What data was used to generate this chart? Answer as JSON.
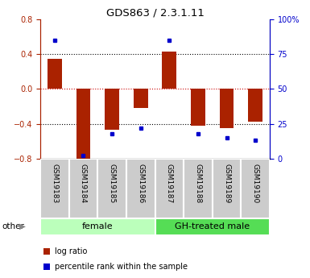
{
  "title": "GDS863 / 2.3.1.11",
  "samples": [
    "GSM19183",
    "GSM19184",
    "GSM19185",
    "GSM19186",
    "GSM19187",
    "GSM19188",
    "GSM19189",
    "GSM19190"
  ],
  "log_ratio": [
    0.35,
    -0.8,
    -0.47,
    -0.22,
    0.43,
    -0.42,
    -0.45,
    -0.38
  ],
  "percentile_rank": [
    85,
    2,
    18,
    22,
    85,
    18,
    15,
    13
  ],
  "groups": [
    {
      "label": "female",
      "start": 0,
      "end": 4,
      "color": "#bbffbb"
    },
    {
      "label": "GH-treated male",
      "start": 4,
      "end": 8,
      "color": "#55dd55"
    }
  ],
  "ylim_left": [
    -0.8,
    0.8
  ],
  "ylim_right": [
    0,
    100
  ],
  "yticks_left": [
    -0.8,
    -0.4,
    0.0,
    0.4,
    0.8
  ],
  "yticks_right": [
    0,
    25,
    50,
    75,
    100
  ],
  "ytick_labels_right": [
    "0",
    "25",
    "50",
    "75",
    "100%"
  ],
  "bar_color": "#aa2200",
  "dot_color": "#0000cc",
  "bar_width": 0.5,
  "zero_line_color": "#cc0000",
  "bg_color": "white",
  "other_label": "other",
  "legend_items": [
    {
      "label": "log ratio",
      "color": "#aa2200"
    },
    {
      "label": "percentile rank within the sample",
      "color": "#0000cc"
    }
  ]
}
